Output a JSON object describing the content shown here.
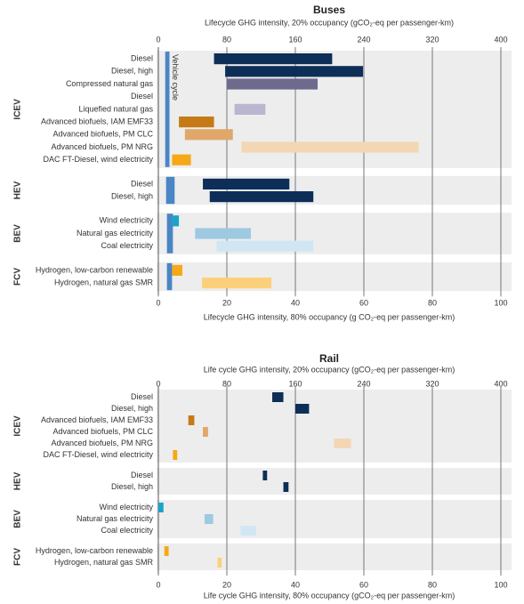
{
  "chart_data": [
    {
      "type": "range-bar",
      "title": "Buses",
      "x_label": "Lifecycle GHG intensity, 20% occupancy (gCO₂-eq per passenger-km)",
      "x2_label": "Lifecycle GHG intensity, 80% occupancy (g CO₂-eq per passenger-km)",
      "xlim": [
        0,
        400
      ],
      "xticks": [
        0,
        80,
        160,
        240,
        320,
        400
      ],
      "x2lim": [
        0,
        100
      ],
      "x2ticks": [
        0,
        20,
        40,
        60,
        80,
        100
      ],
      "vehicle_cycle_label": "Vehicle cycle",
      "vehicle_cycle_color": "#4a86c5",
      "groups": [
        {
          "name": "ICEV",
          "categories": [
            "Diesel",
            "Diesel, high",
            "Compressed natural gas",
            "Diesel",
            "Liquefied natural gas",
            "Advanced biofuels, IAM EMF33",
            "Advanced biofuels, PM CLC",
            "Advanced biofuels, PM NRG",
            "DAC FT-Diesel, wind electricity"
          ],
          "low": [
            65,
            78,
            80,
            null,
            89,
            24,
            31,
            97,
            16
          ],
          "high": [
            203,
            239,
            186,
            null,
            125,
            65,
            87,
            304,
            38
          ],
          "colors": [
            "#0d2e57",
            "#0d2e57",
            "#6d6a8e",
            "#6d6a8e",
            "#b9b6cf",
            "#c67a17",
            "#e0a76a",
            "#f3d7b4",
            "#f6a817"
          ],
          "vehicle_cycle": [
            8,
            13
          ]
        },
        {
          "name": "HEV",
          "categories": [
            "Diesel",
            "Diesel, high"
          ],
          "low": [
            52,
            60
          ],
          "high": [
            153,
            181
          ],
          "colors": [
            "#0d2e57",
            "#0d2e57"
          ],
          "vehicle_cycle": [
            9,
            19
          ]
        },
        {
          "name": "BEV",
          "categories": [
            "Wind electricity",
            "Natural gas electricity",
            "Coal electricity"
          ],
          "low": [
            16,
            43,
            68
          ],
          "high": [
            24,
            108,
            181
          ],
          "colors": [
            "#1ba4c9",
            "#9dc9e1",
            "#d0e7f3"
          ],
          "vehicle_cycle": [
            10,
            17
          ]
        },
        {
          "name": "FCV",
          "categories": [
            "Hydrogen, low-carbon renewable",
            "Hydrogen, natural gas SMR"
          ],
          "low": [
            16,
            51
          ],
          "high": [
            28,
            132
          ],
          "colors": [
            "#f6a817",
            "#fcd07a"
          ],
          "vehicle_cycle": [
            10,
            16
          ]
        }
      ]
    },
    {
      "type": "range-bar",
      "title": "Rail",
      "x_label": "Life cycle GHG intensity, 20% occupancy (gCO₂-eq per passenger-km)",
      "x2_label": "Life cycle GHG intensity, 80% occupancy (gCO₂-eq per passenger-km)",
      "xlim": [
        0,
        400
      ],
      "xticks": [
        0,
        80,
        160,
        240,
        320,
        400
      ],
      "x2lim": [
        0,
        100
      ],
      "x2ticks": [
        0,
        20,
        40,
        60,
        80,
        100
      ],
      "groups": [
        {
          "name": "ICEV",
          "categories": [
            "Diesel",
            "Diesel, high",
            "Advanced biofuels, IAM EMF33",
            "Advanced biofuels, PM CLC",
            "Advanced biofuels, PM NRG",
            "DAC FT-Diesel, wind electricity"
          ],
          "low": [
            133,
            160,
            35,
            52,
            205,
            17
          ],
          "high": [
            146,
            176,
            42,
            58,
            225,
            22
          ],
          "colors": [
            "#0d2e57",
            "#0d2e57",
            "#c67a17",
            "#e0a76a",
            "#f3d7b4",
            "#f6a817"
          ]
        },
        {
          "name": "HEV",
          "categories": [
            "Diesel",
            "Diesel, high"
          ],
          "low": [
            122,
            146
          ],
          "high": [
            127,
            152
          ],
          "colors": [
            "#0d2e57",
            "#0d2e57"
          ]
        },
        {
          "name": "BEV",
          "categories": [
            "Wind electricity",
            "Natural gas electricity",
            "Coal electricity"
          ],
          "low": [
            0,
            54,
            96
          ],
          "high": [
            6,
            64,
            114
          ],
          "colors": [
            "#1ba4c9",
            "#9dc9e1",
            "#d0e7f3"
          ]
        },
        {
          "name": "FCV",
          "categories": [
            "Hydrogen, low-carbon renewable",
            "Hydrogen, natural gas SMR"
          ],
          "low": [
            7,
            69
          ],
          "high": [
            12,
            74
          ],
          "colors": [
            "#f6a817",
            "#fcd07a"
          ]
        }
      ]
    }
  ]
}
